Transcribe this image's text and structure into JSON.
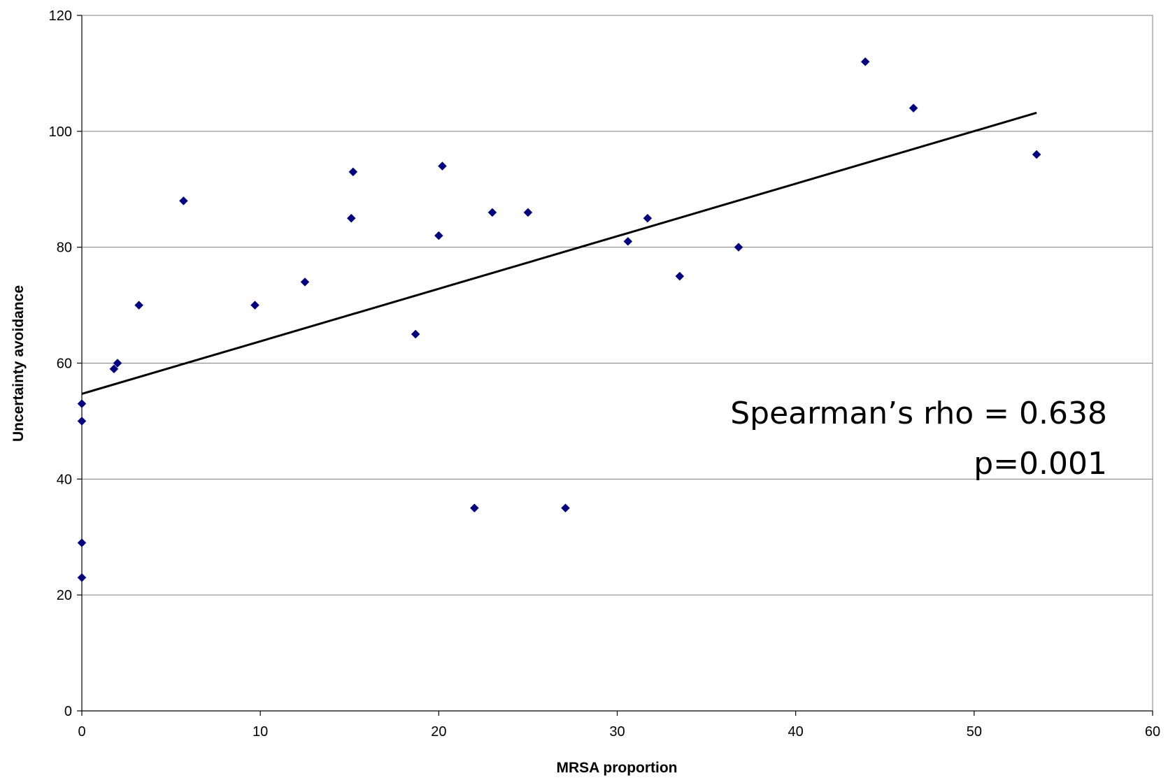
{
  "chart_data": {
    "type": "scatter",
    "title": "",
    "xlabel": "MRSA proportion",
    "ylabel": "Uncertainty avoidance",
    "xlim": [
      0,
      60
    ],
    "ylim": [
      0,
      120
    ],
    "xticks": [
      0,
      10,
      20,
      30,
      40,
      50,
      60
    ],
    "yticks": [
      0,
      20,
      40,
      60,
      80,
      100,
      120
    ],
    "grid": "horizontal",
    "legend": "none",
    "marker_color": "#000080",
    "series": [
      {
        "points": [
          [
            0,
            53
          ],
          [
            0,
            50
          ],
          [
            0,
            29
          ],
          [
            0,
            23
          ],
          [
            1.8,
            59
          ],
          [
            2.0,
            60
          ],
          [
            3.2,
            70
          ],
          [
            5.7,
            88
          ],
          [
            9.7,
            70
          ],
          [
            12.5,
            74
          ],
          [
            15.1,
            85
          ],
          [
            15.2,
            93
          ],
          [
            18.7,
            65
          ],
          [
            20.0,
            82
          ],
          [
            20.2,
            94
          ],
          [
            22.0,
            35
          ],
          [
            23.0,
            86
          ],
          [
            25.0,
            86
          ],
          [
            27.1,
            35
          ],
          [
            30.6,
            81
          ],
          [
            31.7,
            85
          ],
          [
            33.5,
            75
          ],
          [
            36.8,
            80
          ],
          [
            43.9,
            112
          ],
          [
            46.6,
            104
          ],
          [
            53.5,
            96
          ]
        ]
      }
    ],
    "trendline": {
      "x": [
        0,
        53.5
      ],
      "y": [
        54.7,
        103.2
      ]
    },
    "annotations": {
      "line1": "Spearman’s rho = 0.638",
      "line2": "p=0.001"
    }
  }
}
